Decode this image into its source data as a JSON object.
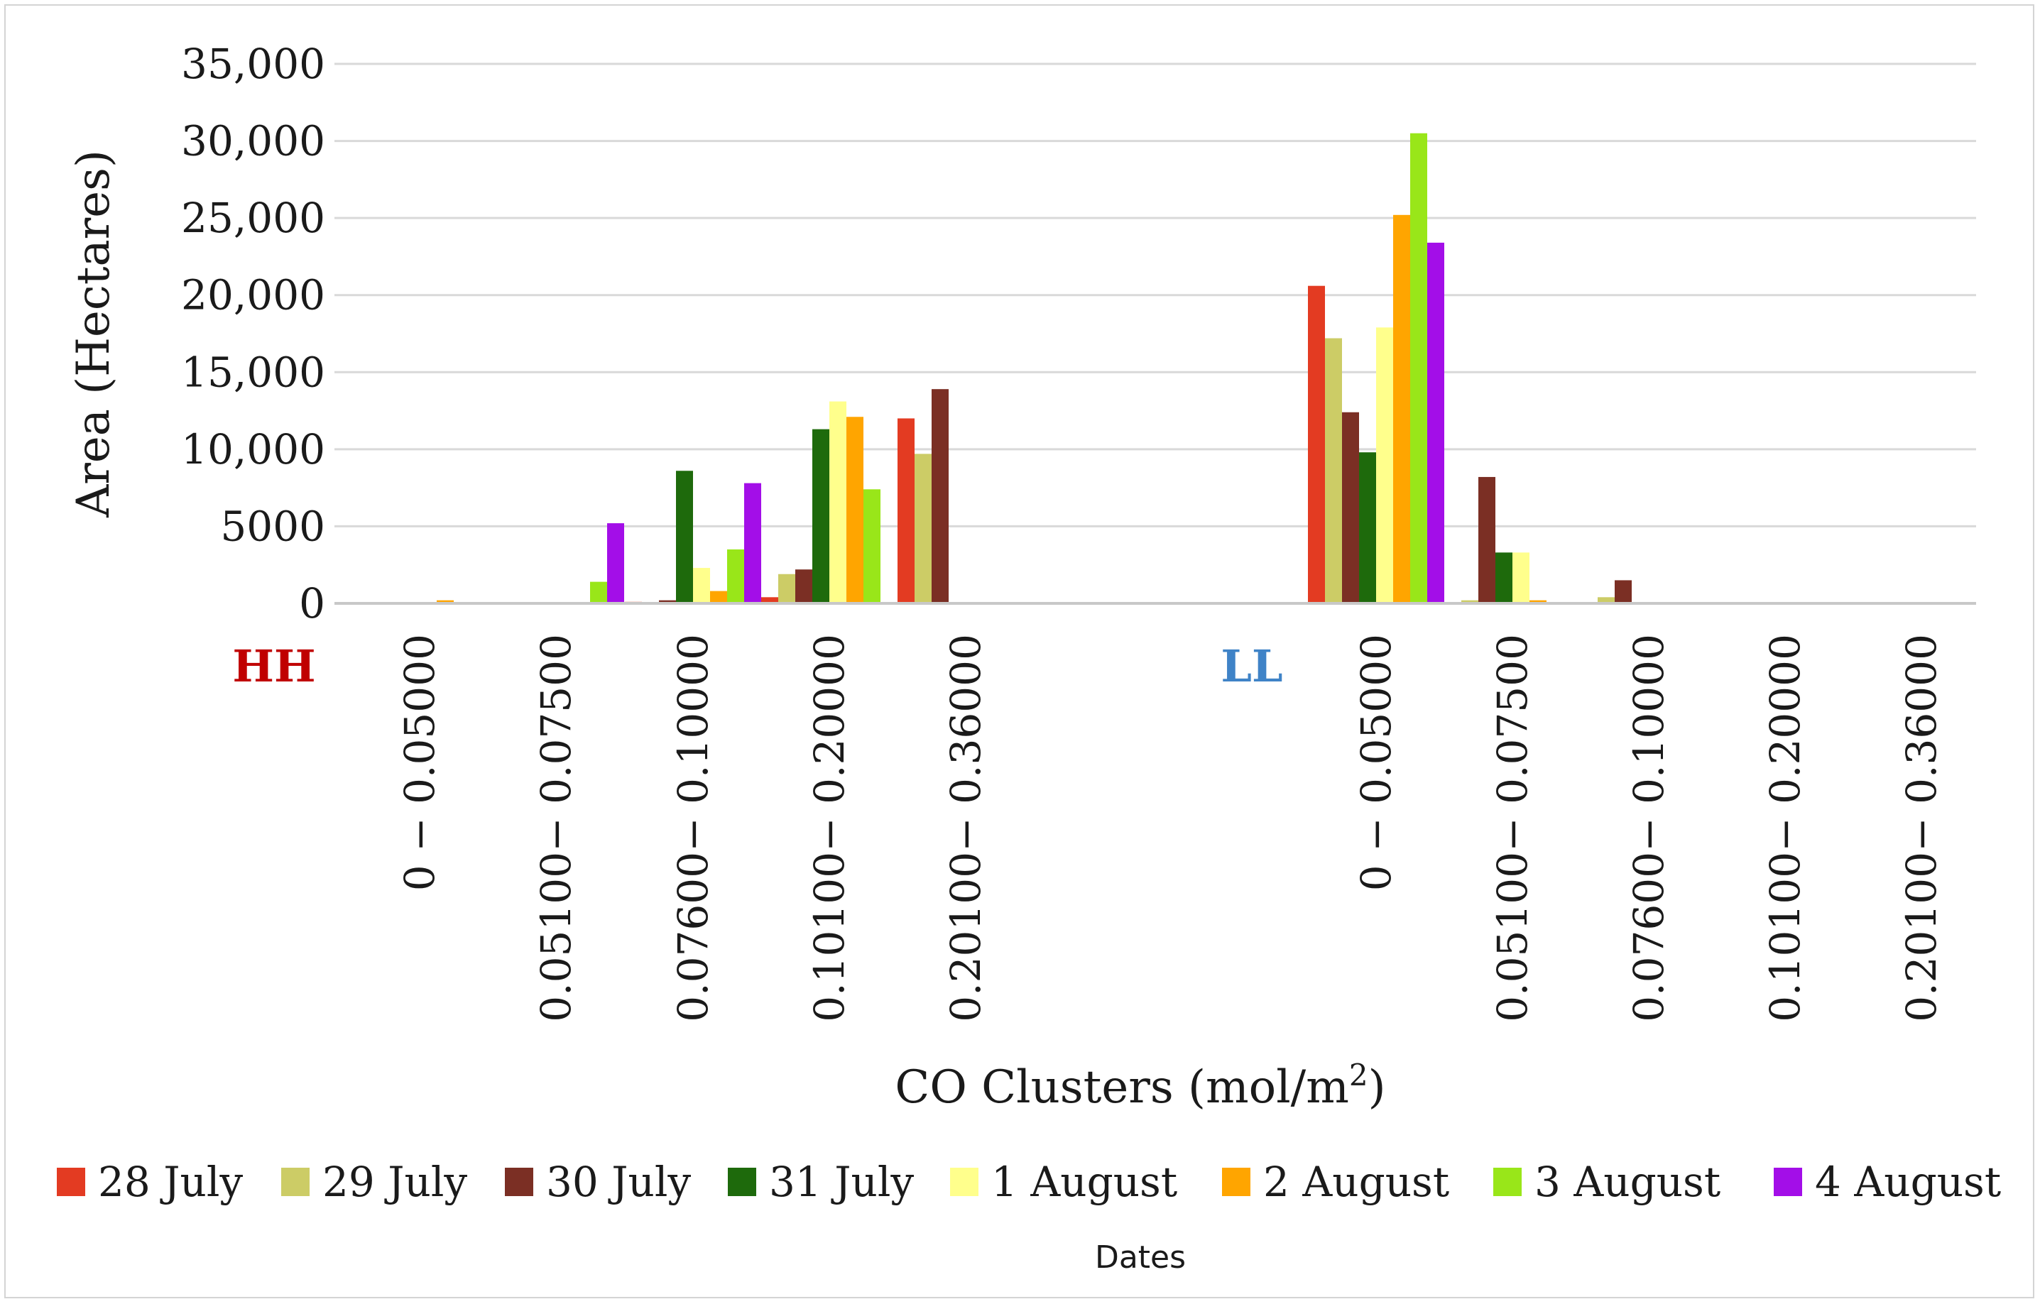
{
  "chart_data": {
    "type": "bar",
    "title": "",
    "xlabel_main": "CO Clusters (mol/m",
    "xlabel_sup": "2",
    "xlabel_end": ")",
    "ylabel": "Area (Hectares)",
    "ylim": [
      0,
      35000
    ],
    "y_ticks": [
      0,
      5000,
      10000,
      15000,
      20000,
      25000,
      30000,
      35000
    ],
    "y_tick_labels": [
      "0",
      "5000",
      "10,000",
      "15,000",
      "20,000",
      "25,000",
      "30,000",
      "35,000"
    ],
    "grid": true,
    "legend_title": "Dates",
    "legend_position": "bottom",
    "groups": [
      {
        "name": "HH",
        "color": "#c00000",
        "categories": [
          "0 − 0.05000",
          "0.05100− 0.07500",
          "0.07600− 0.10000",
          "0.10100− 0.20000",
          "0.20100− 0.36000"
        ]
      },
      {
        "name": "LL",
        "color": "#3f83c7",
        "categories": [
          "0 − 0.05000",
          "0.05100− 0.07500",
          "0.07600− 0.10000",
          "0.10100− 0.20000",
          "0.20100− 0.36000"
        ]
      }
    ],
    "series": [
      {
        "name": "28 July",
        "color": "#e33b22",
        "values": [
          0,
          0,
          100,
          400,
          12000,
          20600,
          0,
          0,
          0,
          0
        ]
      },
      {
        "name": "29 July",
        "color": "#cccc66",
        "values": [
          0,
          0,
          0,
          1900,
          9700,
          17200,
          200,
          400,
          0,
          0
        ]
      },
      {
        "name": "30 July",
        "color": "#7b2f24",
        "values": [
          0,
          0,
          200,
          2200,
          13900,
          12400,
          8200,
          1500,
          0,
          0
        ]
      },
      {
        "name": "31 July",
        "color": "#1e6a0c",
        "values": [
          0,
          0,
          8600,
          11300,
          0,
          9800,
          3300,
          0,
          0,
          0
        ]
      },
      {
        "name": "1 August",
        "color": "#ffff8c",
        "values": [
          0,
          0,
          2300,
          13100,
          0,
          17900,
          3300,
          0,
          0,
          0
        ]
      },
      {
        "name": "2 August",
        "color": "#ffa500",
        "values": [
          200,
          0,
          800,
          12100,
          0,
          25200,
          200,
          0,
          0,
          0
        ]
      },
      {
        "name": "3 August",
        "color": "#99e619",
        "values": [
          0,
          1400,
          3500,
          7400,
          0,
          30500,
          0,
          0,
          0,
          0
        ]
      },
      {
        "name": "4 August",
        "color": "#a30ee8",
        "values": [
          0,
          5200,
          7800,
          0,
          0,
          23400,
          0,
          0,
          0,
          0
        ]
      }
    ]
  }
}
